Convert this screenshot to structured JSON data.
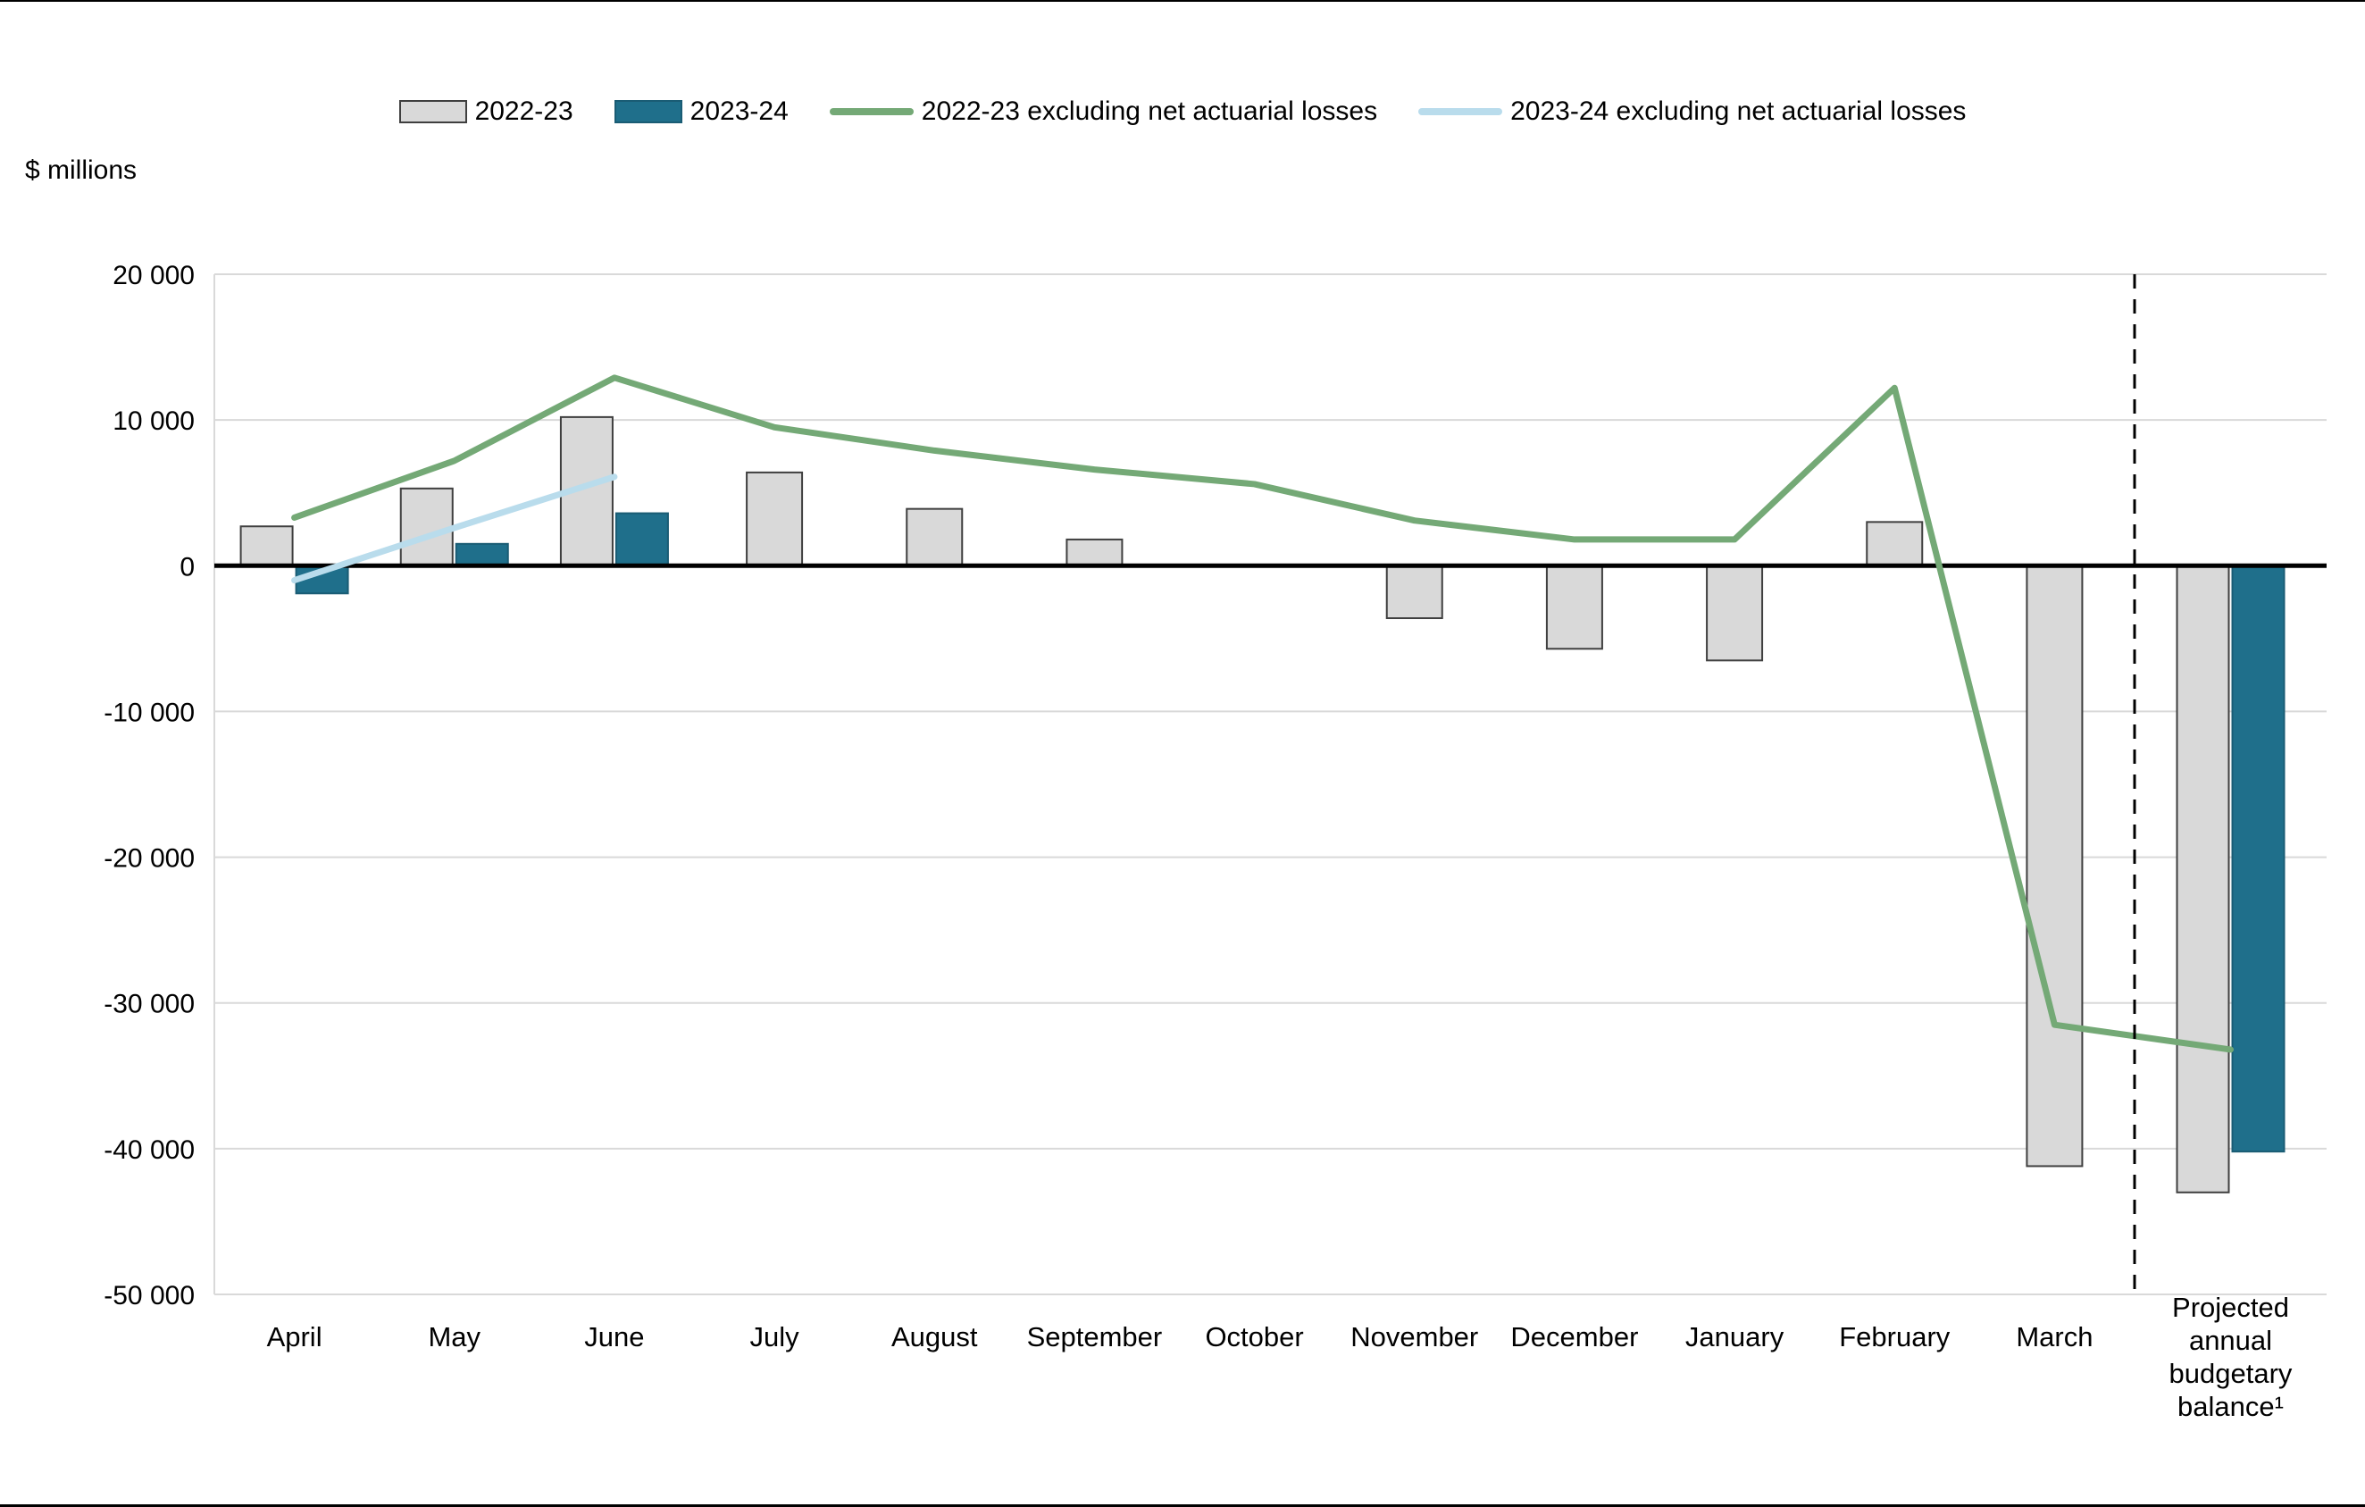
{
  "chart_data": {
    "type": "bar",
    "title": "",
    "ylabel": "$ millions",
    "ylim": [
      -50000,
      20000
    ],
    "ytick_step": 10000,
    "grid": true,
    "legend_position": "top",
    "yticks": [
      {
        "value": 20000,
        "label": "20 000"
      },
      {
        "value": 10000,
        "label": "10 000"
      },
      {
        "value": 0,
        "label": "0"
      },
      {
        "value": -10000,
        "label": "-10 000"
      },
      {
        "value": -20000,
        "label": "-20 000"
      },
      {
        "value": -30000,
        "label": "-30 000"
      },
      {
        "value": -40000,
        "label": "-40 000"
      },
      {
        "value": -50000,
        "label": "-50 000"
      }
    ],
    "categories": [
      "April",
      "May",
      "June",
      "July",
      "August",
      "September",
      "October",
      "November",
      "December",
      "January",
      "February",
      "March",
      "Projected annual budgetary balance¹"
    ],
    "series": [
      {
        "name": "2022-23",
        "kind": "bar",
        "color": "#d9d9d9",
        "border": "#3f3f3f",
        "values": [
          2700,
          5300,
          10200,
          6400,
          3900,
          1800,
          0,
          -3600,
          -5700,
          -6500,
          3000,
          -41200,
          -43000
        ]
      },
      {
        "name": "2023-24",
        "kind": "bar",
        "color": "#1f6f8b",
        "border": "#1a5c74",
        "values": [
          -1900,
          1500,
          3600,
          null,
          null,
          null,
          null,
          null,
          null,
          null,
          null,
          null,
          -40200
        ]
      },
      {
        "name": "2022-23 excluding net actuarial losses",
        "kind": "line",
        "color": "#74a976",
        "values": [
          3300,
          7200,
          12900,
          9500,
          7900,
          6600,
          5600,
          3100,
          1800,
          1800,
          12200,
          -31500,
          -33200
        ]
      },
      {
        "name": "2023-24 excluding net actuarial losses",
        "kind": "line",
        "color": "#b9dcec",
        "values": [
          -1000,
          2600,
          6100,
          null,
          null,
          null,
          null,
          null,
          null,
          null,
          null,
          null,
          null
        ]
      }
    ],
    "separator": {
      "after_category": "March",
      "style": "dashed",
      "color": "#000000"
    }
  },
  "legend": [
    {
      "label": "2022-23",
      "kind": "bar",
      "color": "#d9d9d9",
      "border": "#3f3f3f"
    },
    {
      "label": "2023-24",
      "kind": "bar",
      "color": "#1f6f8b",
      "border": "#1a5c74"
    },
    {
      "label": "2022-23 excluding net actuarial losses",
      "kind": "line",
      "color": "#74a976"
    },
    {
      "label": "2023-24 excluding net actuarial losses",
      "kind": "line",
      "color": "#b9dcec"
    }
  ]
}
